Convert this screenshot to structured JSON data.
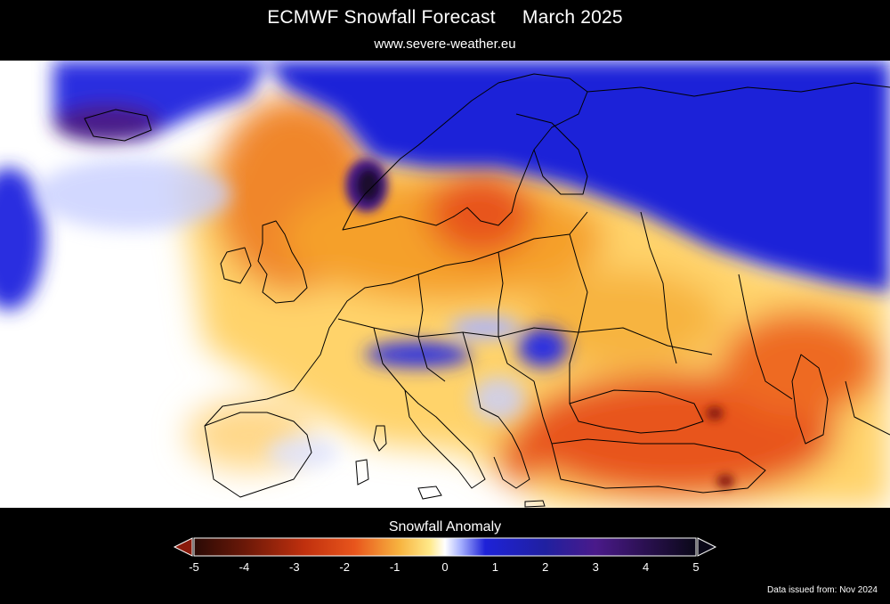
{
  "header": {
    "title_main": "ECMWF Snowfall Forecast",
    "title_period": "March 2025",
    "subtitle": "www.severe-weather.eu"
  },
  "map": {
    "description_icon": "europe-map",
    "colors": {
      "strong_positive": "#1a0f2e",
      "positive_purple": "#4a1a8a",
      "positive_blue": "#1e22d8",
      "light_blue": "#aab4ff",
      "neutral": "#ffffff",
      "light_yellow": "#ffe98a",
      "orange": "#f5a02a",
      "red_orange": "#e8551c",
      "dark_red": "#8a1a0a",
      "border": "#000000"
    }
  },
  "legend": {
    "title": "Snowfall Anomaly",
    "ticks": [
      "-5",
      "-4",
      "-3",
      "-2",
      "-1",
      "0",
      "1",
      "2",
      "3",
      "4",
      "5"
    ],
    "range": [
      -5,
      5
    ],
    "left_arrow_icon": "triangle-left-icon",
    "right_arrow_icon": "triangle-right-icon"
  },
  "footer": {
    "issued": "Data issued from: Nov 2024"
  }
}
